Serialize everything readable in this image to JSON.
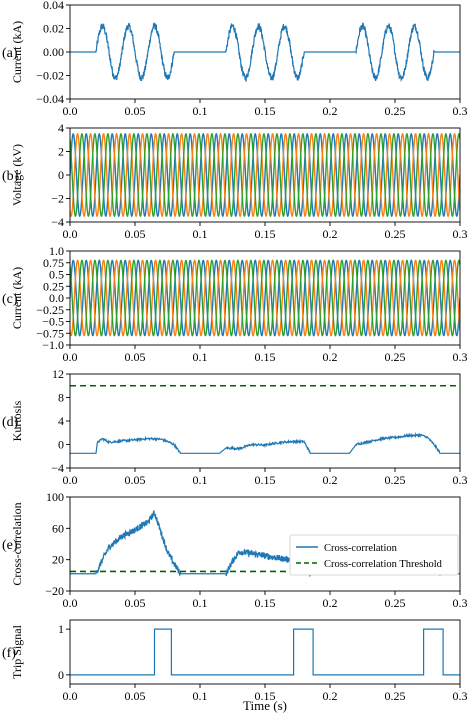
{
  "figure": {
    "xlabel": "Time (s)"
  },
  "chart_data": [
    {
      "id": "a",
      "type": "line",
      "panel_label": "(a)",
      "ylabel": "Current (kA)",
      "xlim": [
        0,
        0.3
      ],
      "ylim": [
        -0.04,
        0.04
      ],
      "xticks": [
        0.0,
        0.05,
        0.1,
        0.15,
        0.2,
        0.25,
        0.3
      ],
      "xtick_labels": [
        "0.0",
        "0.05",
        "0.1",
        "0.15",
        "0.2",
        "0.25",
        "0.3"
      ],
      "yticks": [
        -0.04,
        -0.02,
        0.0,
        0.02,
        0.04
      ],
      "ytick_labels": [
        "−0.04",
        "−0.02",
        "0.00",
        "0.02",
        "0.04"
      ],
      "series": [
        {
          "color": "#1f77b4",
          "description": "bursts of ~50 Hz oscillation, amplitude ~0.022 kA, during 0.02–0.08 s, 0.12–0.18 s, 0.22–0.28 s; zero elsewhere",
          "bursts": [
            [
              0.02,
              0.08
            ],
            [
              0.12,
              0.18
            ],
            [
              0.22,
              0.28
            ]
          ],
          "amplitude": 0.022,
          "frequency_hz": 50
        }
      ]
    },
    {
      "id": "b",
      "type": "line",
      "panel_label": "(b)",
      "ylabel": "Voltage (kV)",
      "xlim": [
        0,
        0.3
      ],
      "ylim": [
        -4,
        4
      ],
      "xticks": [
        0.0,
        0.05,
        0.1,
        0.15,
        0.2,
        0.25,
        0.3
      ],
      "xtick_labels": [
        "0.0",
        "0.05",
        "0.1",
        "0.15",
        "0.2",
        "0.25",
        "0.3"
      ],
      "yticks": [
        -4,
        -2,
        0,
        2,
        4
      ],
      "ytick_labels": [
        "−4",
        "−2",
        "0",
        "2",
        "4"
      ],
      "series": [
        {
          "color": "#1f77b4",
          "amplitude": 3.5,
          "frequency_hz": 100,
          "phase_deg": 0
        },
        {
          "color": "#ff7f0e",
          "amplitude": 3.5,
          "frequency_hz": 100,
          "phase_deg": -120
        },
        {
          "color": "#2ca02c",
          "amplitude": 3.5,
          "frequency_hz": 100,
          "phase_deg": 120
        }
      ]
    },
    {
      "id": "c",
      "type": "line",
      "panel_label": "(c)",
      "ylabel": "Current (kA)",
      "xlim": [
        0,
        0.3
      ],
      "ylim": [
        -1.0,
        1.0
      ],
      "xticks": [
        0.0,
        0.05,
        0.1,
        0.15,
        0.2,
        0.25,
        0.3
      ],
      "xtick_labels": [
        "0.0",
        "0.05",
        "0.1",
        "0.15",
        "0.2",
        "0.25",
        "0.3"
      ],
      "yticks": [
        -1.0,
        -0.75,
        -0.5,
        -0.25,
        0.0,
        0.25,
        0.5,
        0.75,
        1.0
      ],
      "ytick_labels": [
        "−1.0",
        "−0.75",
        "−0.5",
        "−0.25",
        "0.0",
        "0.25",
        "0.5",
        "0.75",
        "1.0"
      ],
      "series": [
        {
          "color": "#1f77b4",
          "amplitude": 0.8,
          "frequency_hz": 100,
          "phase_deg": 0
        },
        {
          "color": "#ff7f0e",
          "amplitude": 0.8,
          "frequency_hz": 100,
          "phase_deg": -120
        },
        {
          "color": "#2ca02c",
          "amplitude": 0.8,
          "frequency_hz": 100,
          "phase_deg": 120
        }
      ]
    },
    {
      "id": "d",
      "type": "line",
      "panel_label": "(d)",
      "ylabel": "Kurtosis",
      "xlim": [
        0,
        0.3
      ],
      "ylim": [
        -4,
        12
      ],
      "xticks": [
        0.0,
        0.05,
        0.1,
        0.15,
        0.2,
        0.25,
        0.3
      ],
      "xtick_labels": [
        "0.0",
        "0.05",
        "0.1",
        "0.15",
        "0.2",
        "0.25",
        "0.3"
      ],
      "yticks": [
        -4,
        0,
        4,
        8,
        12
      ],
      "ytick_labels": [
        "−4",
        "0",
        "4",
        "8",
        "12"
      ],
      "threshold": {
        "value": 10,
        "color": "#006400",
        "style": "dashed"
      },
      "series": [
        {
          "color": "#1f77b4",
          "x": [
            0.0,
            0.02,
            0.021,
            0.025,
            0.03,
            0.04,
            0.05,
            0.06,
            0.07,
            0.075,
            0.08,
            0.085,
            0.1,
            0.115,
            0.12,
            0.13,
            0.14,
            0.15,
            0.16,
            0.17,
            0.18,
            0.185,
            0.2,
            0.215,
            0.22,
            0.23,
            0.24,
            0.25,
            0.26,
            0.27,
            0.275,
            0.28,
            0.285,
            0.3
          ],
          "y": [
            -1.5,
            -1.5,
            0.3,
            1.0,
            0.4,
            0.6,
            0.8,
            1.0,
            0.9,
            0.5,
            0.0,
            -1.5,
            -1.5,
            -1.5,
            -0.6,
            -0.7,
            0.0,
            -0.1,
            0.3,
            0.5,
            0.5,
            -1.5,
            -1.5,
            -1.5,
            0.0,
            0.5,
            1.0,
            1.2,
            1.5,
            1.6,
            1.2,
            0.0,
            -1.5,
            -1.5
          ]
        }
      ]
    },
    {
      "id": "e",
      "type": "line",
      "panel_label": "(e)",
      "ylabel": "Cross-correlation",
      "xlim": [
        0,
        0.3
      ],
      "ylim": [
        -20,
        100
      ],
      "xticks": [
        0.0,
        0.05,
        0.1,
        0.15,
        0.2,
        0.25,
        0.3
      ],
      "xtick_labels": [
        "0.0",
        "0.05",
        "0.1",
        "0.15",
        "0.2",
        "0.25",
        "0.3"
      ],
      "yticks": [
        -20,
        20,
        60,
        100
      ],
      "ytick_labels": [
        "−20",
        "20",
        "60",
        "100"
      ],
      "threshold": {
        "value": 5,
        "color": "#006400",
        "style": "dashed"
      },
      "legend": {
        "position": "upper-right",
        "entries": [
          {
            "label": "Cross-correlation",
            "color": "#1f77b4",
            "style": "solid"
          },
          {
            "label": "Cross-correlation Threshold",
            "color": "#006400",
            "style": "dashed"
          }
        ]
      },
      "series": [
        {
          "name": "Cross-correlation",
          "color": "#1f77b4",
          "x": [
            0.0,
            0.02,
            0.025,
            0.03,
            0.04,
            0.05,
            0.06,
            0.065,
            0.07,
            0.075,
            0.08,
            0.085,
            0.12,
            0.125,
            0.13,
            0.14,
            0.15,
            0.16,
            0.17,
            0.175,
            0.18,
            0.185,
            0.22,
            0.225,
            0.23,
            0.24,
            0.25,
            0.26,
            0.27,
            0.275,
            0.28,
            0.285,
            0.3
          ],
          "y": [
            2,
            2,
            20,
            36,
            50,
            58,
            68,
            80,
            55,
            30,
            15,
            2,
            2,
            18,
            30,
            28,
            25,
            22,
            20,
            18,
            15,
            2,
            2,
            20,
            38,
            45,
            42,
            40,
            35,
            30,
            20,
            2,
            2
          ]
        }
      ]
    },
    {
      "id": "f",
      "type": "line",
      "panel_label": "(f)",
      "ylabel": "Trip Signal",
      "xlim": [
        0,
        0.3
      ],
      "ylim": [
        -0.2,
        1.2
      ],
      "xticks": [
        0.0,
        0.05,
        0.1,
        0.15,
        0.2,
        0.25,
        0.3
      ],
      "xtick_labels": [
        "0.0",
        "0.05",
        "0.1",
        "0.15",
        "0.2",
        "0.25",
        "0.3"
      ],
      "yticks": [
        0,
        1
      ],
      "ytick_labels": [
        "0",
        "1"
      ],
      "series": [
        {
          "color": "#1f77b4",
          "x": [
            0.0,
            0.065,
            0.065,
            0.078,
            0.078,
            0.172,
            0.172,
            0.187,
            0.187,
            0.272,
            0.272,
            0.287,
            0.287,
            0.3
          ],
          "y": [
            0,
            0,
            1,
            1,
            0,
            0,
            1,
            1,
            0,
            0,
            1,
            1,
            0,
            0
          ]
        }
      ]
    }
  ]
}
